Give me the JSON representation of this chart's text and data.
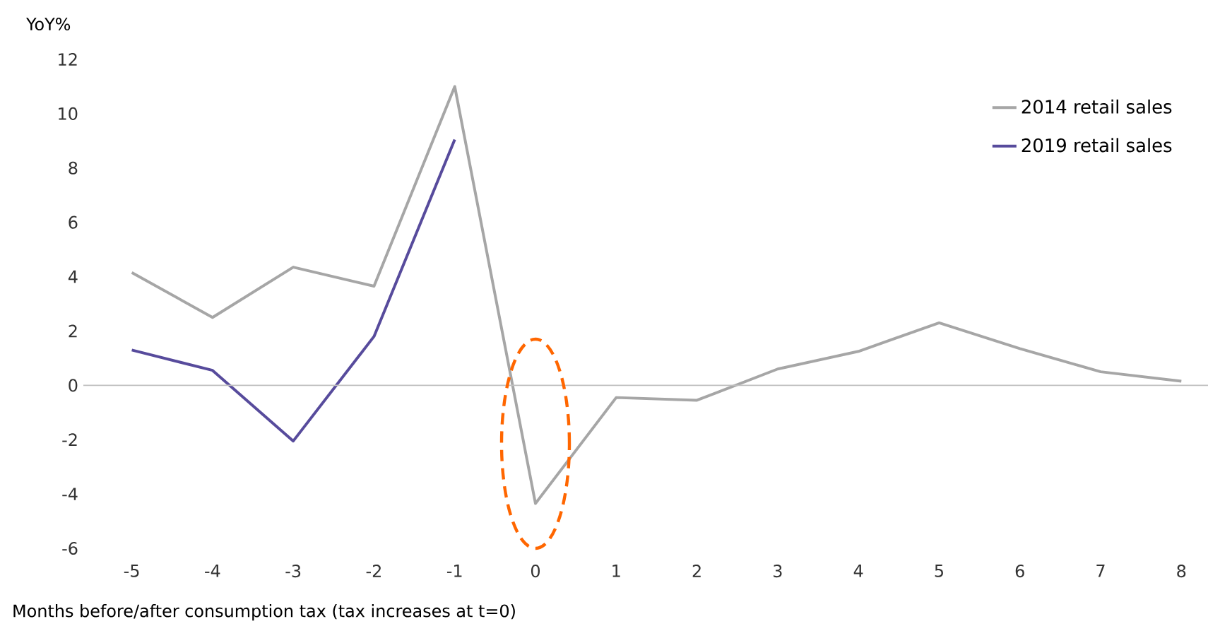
{
  "chart_data": {
    "type": "line",
    "ylabel": "YoY%",
    "xlabel": "Months before/after consumption tax (tax increases at t=0)",
    "x": [
      -5,
      -4,
      -3,
      -2,
      -1,
      0,
      1,
      2,
      3,
      4,
      5,
      6,
      7,
      8
    ],
    "series": [
      {
        "name": "2014 retail sales",
        "color": "#a6a6a6",
        "values": [
          4.15,
          2.5,
          4.35,
          3.65,
          11.0,
          -4.35,
          -0.45,
          -0.55,
          0.6,
          1.25,
          2.3,
          1.35,
          0.5,
          0.15
        ]
      },
      {
        "name": "2019 retail sales",
        "color": "#574b9c",
        "values": [
          1.3,
          0.55,
          -2.05,
          1.8,
          9.05,
          null,
          null,
          null,
          null,
          null,
          null,
          null,
          null,
          null
        ]
      }
    ],
    "xlim": [
      -5.6,
      8.4
    ],
    "ylim": [
      -6,
      12
    ],
    "ref_lines": [
      {
        "axis": "y",
        "value": 0,
        "color": "#bfbfbf"
      }
    ],
    "xticks": [
      -5,
      -4,
      -3,
      -2,
      -1,
      0,
      1,
      2,
      3,
      4,
      5,
      6,
      7,
      8
    ],
    "yticks": [
      -6,
      -4,
      -2,
      0,
      2,
      4,
      6,
      8,
      10,
      12
    ],
    "grid": false,
    "legend": "top right",
    "marker": "none",
    "line_style": "solid"
  }
}
